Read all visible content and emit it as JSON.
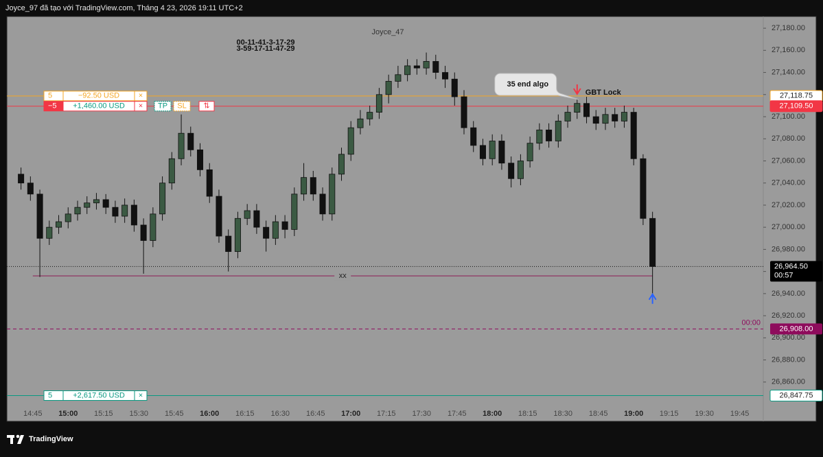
{
  "chart_data": {
    "type": "candlestick",
    "header": "Joyce_97 đã tạo với TradingView.com, Tháng 4 23, 2026 19:11 UTC+2",
    "title": "Joyce_47",
    "notes": [
      "00-11-41-3-17-29",
      "3-59-17-11-47-29"
    ],
    "brand": "TradingView",
    "up_color": "#3b5a43",
    "down_color": "#111111",
    "x": [
      "14:40",
      "14:44",
      "14:48",
      "14:52",
      "14:56",
      "15:00",
      "15:04",
      "15:08",
      "15:12",
      "15:16",
      "15:20",
      "15:24",
      "15:28",
      "15:32",
      "15:36",
      "15:40",
      "15:44",
      "15:48",
      "15:52",
      "15:56",
      "16:00",
      "16:04",
      "16:08",
      "16:12",
      "16:16",
      "16:20",
      "16:24",
      "16:28",
      "16:32",
      "16:36",
      "16:40",
      "16:44",
      "16:48",
      "16:52",
      "16:56",
      "17:00",
      "17:04",
      "17:08",
      "17:12",
      "17:16",
      "17:20",
      "17:24",
      "17:28",
      "17:32",
      "17:36",
      "17:40",
      "17:44",
      "17:48",
      "17:52",
      "17:56",
      "18:00",
      "18:04",
      "18:08",
      "18:12",
      "18:16",
      "18:20",
      "18:24",
      "18:28",
      "18:32",
      "18:36",
      "18:40",
      "18:44",
      "18:48",
      "18:52",
      "18:56",
      "19:00",
      "19:04",
      "19:08"
    ],
    "open": [
      27048,
      27040,
      27030,
      26990,
      27000,
      27005,
      27012,
      27018,
      27022,
      27025,
      27018,
      27010,
      27020,
      27002,
      26988,
      27012,
      27040,
      27062,
      27085,
      27070,
      27052,
      27028,
      26992,
      26978,
      27008,
      27015,
      27000,
      26990,
      27005,
      26998,
      27030,
      27045,
      27030,
      27012,
      27048,
      27066,
      27090,
      27098,
      27104,
      27120,
      27132,
      27138,
      27146,
      27144,
      27150,
      27140,
      27134,
      27118,
      27090,
      27074,
      27062,
      27078,
      27058,
      27044,
      27060,
      27076,
      27088,
      27078,
      27096,
      27104,
      27112,
      27100,
      27094,
      27102,
      27096,
      27104,
      27062,
      27008
    ],
    "high": [
      27054,
      27046,
      27034,
      27006,
      27011,
      27018,
      27024,
      27028,
      27031,
      27030,
      27024,
      27026,
      27025,
      27008,
      27018,
      27046,
      27068,
      27102,
      27091,
      27076,
      27058,
      27034,
      26998,
      27014,
      27021,
      27021,
      27006,
      27011,
      27011,
      27036,
      27058,
      27051,
      27036,
      27054,
      27072,
      27096,
      27106,
      27110,
      27126,
      27138,
      27146,
      27152,
      27152,
      27158,
      27156,
      27146,
      27140,
      27124,
      27096,
      27080,
      27084,
      27084,
      27064,
      27066,
      27082,
      27094,
      27094,
      27102,
      27110,
      27116,
      27118,
      27106,
      27108,
      27108,
      27110,
      27108,
      27066,
      27014
    ],
    "low": [
      27034,
      27024,
      26955,
      26984,
      26994,
      26999,
      27006,
      27012,
      27016,
      27012,
      27004,
      27004,
      26996,
      26958,
      26982,
      27006,
      27034,
      27056,
      27064,
      27046,
      27022,
      26986,
      26960,
      26972,
      27002,
      26994,
      26978,
      26984,
      26990,
      26992,
      27024,
      27024,
      27006,
      27006,
      27042,
      27060,
      27084,
      27092,
      27098,
      27112,
      27126,
      27132,
      27138,
      27138,
      27134,
      27126,
      27110,
      27084,
      27068,
      27056,
      27056,
      27052,
      27036,
      27038,
      27054,
      27070,
      27072,
      27072,
      27090,
      27098,
      27094,
      27088,
      27088,
      27090,
      27090,
      27056,
      27002,
      26932
    ],
    "close": [
      27040,
      27030,
      26990,
      27000,
      27005,
      27012,
      27018,
      27022,
      27025,
      27018,
      27010,
      27020,
      27002,
      26988,
      27012,
      27040,
      27062,
      27085,
      27070,
      27052,
      27028,
      26992,
      26978,
      27008,
      27015,
      27000,
      26990,
      27005,
      26998,
      27030,
      27045,
      27030,
      27012,
      27048,
      27066,
      27090,
      27098,
      27104,
      27120,
      27132,
      27138,
      27146,
      27144,
      27150,
      27140,
      27134,
      27118,
      27090,
      27074,
      27062,
      27078,
      27058,
      27044,
      27060,
      27076,
      27088,
      27078,
      27096,
      27104,
      27112,
      27100,
      27094,
      27102,
      27096,
      27104,
      27062,
      27008,
      26964.5
    ],
    "xlim": [
      "14:34",
      "19:55"
    ],
    "xticks": [
      "14:45",
      "15:00",
      "15:15",
      "15:30",
      "15:45",
      "16:00",
      "16:15",
      "16:30",
      "16:45",
      "17:00",
      "17:15",
      "17:30",
      "17:45",
      "18:00",
      "18:15",
      "18:30",
      "18:45",
      "19:00",
      "19:15",
      "19:30",
      "19:45"
    ],
    "ylim": [
      26840,
      27190
    ],
    "yticks": [
      {
        "value": 26860,
        "label": "26,860.00"
      },
      {
        "value": 26880,
        "label": "26,880.00"
      },
      {
        "value": 26900,
        "label": "26,900.00"
      },
      {
        "value": 26920,
        "label": "26,920.00"
      },
      {
        "value": 26940,
        "label": "26,940.00"
      },
      {
        "value": 26960,
        "label": "26,960.00"
      },
      {
        "value": 26980,
        "label": "26,980.00"
      },
      {
        "value": 27000,
        "label": "27,000.00"
      },
      {
        "value": 27020,
        "label": "27,020.00"
      },
      {
        "value": 27040,
        "label": "27,040.00"
      },
      {
        "value": 27060,
        "label": "27,060.00"
      },
      {
        "value": 27080,
        "label": "27,080.00"
      },
      {
        "value": 27100,
        "label": "27,100.00"
      },
      {
        "value": 27120,
        "label": "27,120.00"
      },
      {
        "value": 27140,
        "label": "27,140.00"
      },
      {
        "value": 27160,
        "label": "27,160.00"
      },
      {
        "value": 27180,
        "label": "27,180.00"
      }
    ],
    "ui": {
      "cancel": "×",
      "tp": "TP",
      "sl": "SL",
      "reverse": "⇅"
    },
    "positions": [
      {
        "value": 27118.75,
        "label": "27,118.75",
        "color": "#f5a623",
        "qty": "5",
        "pnl": "−92.50 USD"
      },
      {
        "value": 27109.5,
        "label": "27,109.50",
        "color": "#f23645",
        "qty": "−5",
        "pnl": "+1,460.00 USD",
        "filled": true
      },
      {
        "value": 26847.75,
        "label": "26,847.75",
        "color": "#089981",
        "qty": "5",
        "pnl": "+2,617.50 USD"
      }
    ],
    "last_price": {
      "value": 26964.5,
      "label": "26,964.50",
      "countdown": "00:57"
    },
    "alert_line": {
      "value": 26908,
      "label": "26,908.00",
      "countdown": "00:00",
      "color": "#8e0b5c"
    },
    "drawn_line": {
      "value": 26956,
      "start": "14:45",
      "end": "19:08",
      "label": "xx",
      "color": "#8e2a5c"
    },
    "signals": [
      {
        "x": "18:36",
        "value": 27118,
        "direction": "down",
        "color": "#f23645",
        "text": "GBT Lock"
      },
      {
        "x": "19:08",
        "value": 26932,
        "direction": "up",
        "color": "#2962ff"
      }
    ],
    "callout": "35 end algo"
  }
}
